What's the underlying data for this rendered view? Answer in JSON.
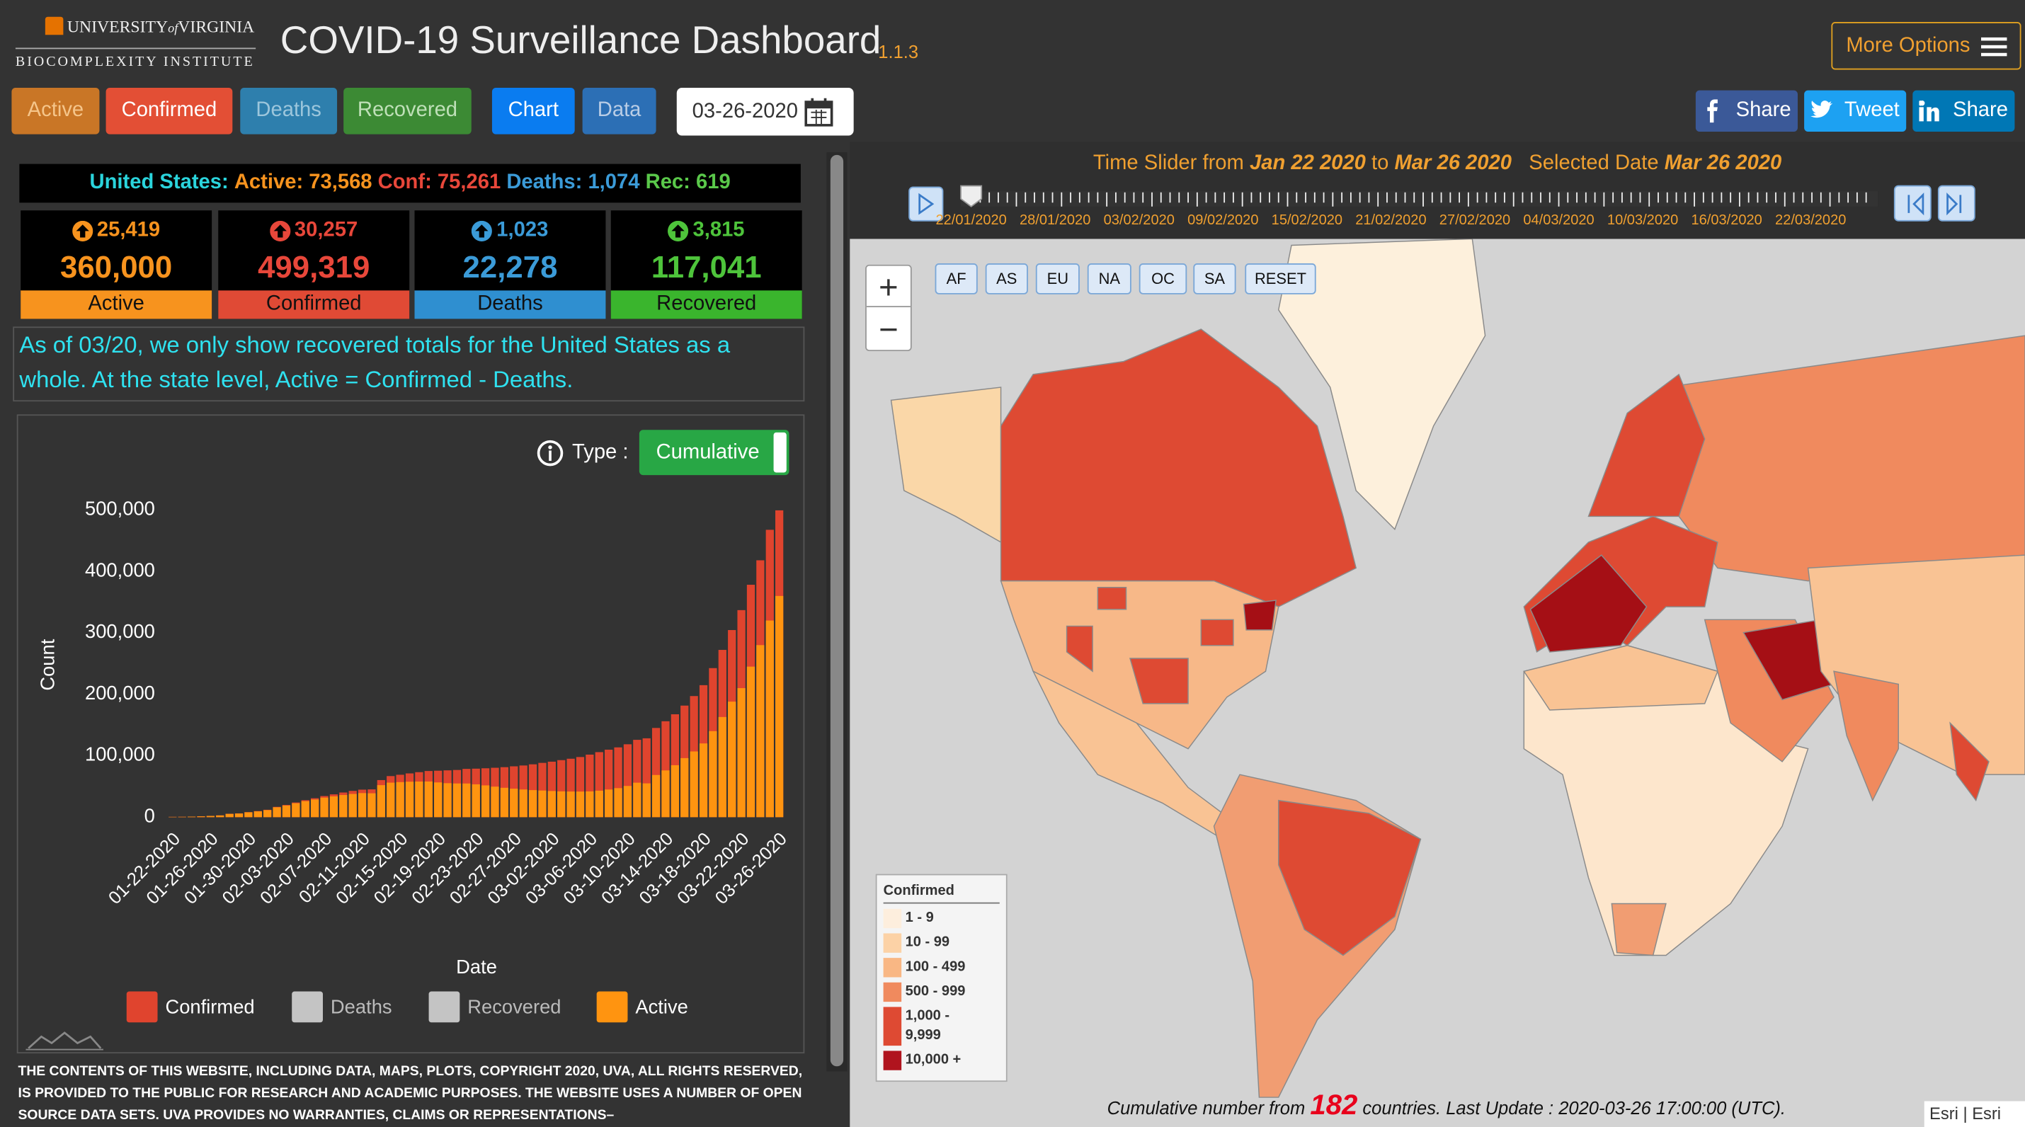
{
  "header": {
    "university": "UNIVERSITY",
    "of": "of",
    "virginia": "VIRGINIA",
    "institute": "BIOCOMPLEXITY INSTITUTE",
    "title": "COVID-19 Surveillance Dashboard",
    "version": "1.1.3",
    "more_options": "More Options"
  },
  "toolbar": {
    "metrics": [
      "Active",
      "Confirmed",
      "Deaths",
      "Recovered"
    ],
    "views": [
      "Chart",
      "Data"
    ],
    "date": "03-26-2020",
    "share": [
      "Share",
      "Tweet",
      "Share"
    ]
  },
  "summary": {
    "country": "United States:",
    "active": "Active: 73,568",
    "confirmed": "Conf: 75,261",
    "deaths": "Deaths: 1,074",
    "recovered": "Rec: 619"
  },
  "stats": [
    {
      "change": "25,419",
      "total": "360,000",
      "label": "Active"
    },
    {
      "change": "30,257",
      "total": "499,319",
      "label": "Confirmed"
    },
    {
      "change": "1,023",
      "total": "22,278",
      "label": "Deaths"
    },
    {
      "change": "3,815",
      "total": "117,041",
      "label": "Recovered"
    }
  ],
  "note": "As of 03/20, we only show recovered totals for the United States as a whole. At the state level, Active = Confirmed - Deaths.",
  "chart_controls": {
    "type_label": "Type :",
    "type_value": "Cumulative"
  },
  "chart_data": {
    "type": "bar",
    "x_label": "Date",
    "y_label": "Count",
    "categories": [
      "01-22-2020",
      null,
      null,
      null,
      "01-26-2020",
      null,
      null,
      null,
      "01-30-2020",
      null,
      null,
      null,
      "02-03-2020",
      null,
      null,
      null,
      "02-07-2020",
      null,
      null,
      null,
      "02-11-2020",
      null,
      null,
      null,
      "02-15-2020",
      null,
      null,
      null,
      "02-19-2020",
      null,
      null,
      null,
      "02-23-2020",
      null,
      null,
      null,
      "02-27-2020",
      null,
      null,
      null,
      "03-02-2020",
      null,
      null,
      null,
      "03-06-2020",
      null,
      null,
      null,
      "03-10-2020",
      null,
      null,
      null,
      "03-14-2020",
      null,
      null,
      null,
      "03-18-2020",
      null,
      null,
      null,
      "03-22-2020",
      null,
      null,
      null,
      "03-26-2020"
    ],
    "series": [
      {
        "name": "Confirmed",
        "color": "#e0442e",
        "visible": true,
        "values": [
          555,
          654,
          941,
          1434,
          2118,
          2927,
          5578,
          6166,
          8234,
          9927,
          12038,
          16787,
          19881,
          23892,
          27635,
          30817,
          34391,
          37120,
          40150,
          42762,
          44802,
          45221,
          60368,
          66885,
          69030,
          71224,
          73258,
          75136,
          75639,
          76197,
          76819,
          78572,
          78958,
          79561,
          80406,
          81388,
          82746,
          84112,
          86011,
          88369,
          90306,
          92840,
          95120,
          97886,
          101801,
          105847,
          109821,
          113590,
          118620,
          125875,
          128352,
          145205,
          156101,
          167454,
          181574,
          197102,
          214821,
          242570,
          272208,
          304507,
          336953,
          378235,
          418045,
          467653,
          499319
        ]
      },
      {
        "name": "Deaths",
        "color": "#c4c4c4",
        "visible": false
      },
      {
        "name": "Recovered",
        "color": "#c4c4c4",
        "visible": false
      },
      {
        "name": "Active",
        "color": "#ff9410",
        "visible": true,
        "values": [
          510,
          605,
          878,
          1358,
          2012,
          2806,
          5357,
          5911,
          7921,
          9470,
          11486,
          16083,
          18951,
          22683,
          26049,
          28729,
          31767,
          33862,
          36069,
          37769,
          39176,
          38866,
          52128,
          56186,
          57053,
          57719,
          57955,
          58040,
          56562,
          55298,
          54826,
          54795,
          53470,
          51735,
          49693,
          47822,
          46403,
          45055,
          44032,
          43357,
          42556,
          42009,
          41734,
          41687,
          41969,
          43129,
          45011,
          47256,
          50811,
          56121,
          55000,
          68656,
          76119,
          84566,
          96120,
          106960,
          120000,
          140000,
          163000,
          188000,
          210000,
          245000,
          280000,
          320000,
          360000
        ]
      }
    ],
    "ylim": [
      0,
      500000
    ],
    "yticks": [
      0,
      {
        "value": 100000,
        "label": "100,000"
      },
      {
        "value": 200000,
        "label": "200,000"
      },
      {
        "value": 300000,
        "label": "300,000"
      },
      {
        "value": 400000,
        "label": "400,000"
      },
      {
        "value": 500000,
        "label": "500,000"
      }
    ],
    "grid": false
  },
  "footer": "THE CONTENTS OF THIS WEBSITE, INCLUDING DATA, MAPS, PLOTS, COPYRIGHT 2020, UVA, ALL RIGHTS RESERVED, IS PROVIDED TO THE PUBLIC FOR RESEARCH AND ACADEMIC PURPOSES. THE WEBSITE USES A NUMBER OF OPEN SOURCE DATA SETS. UVA PROVIDES NO WARRANTIES, CLAIMS OR REPRESENTATIONS–",
  "map": {
    "slider": {
      "prefix": "Time Slider from",
      "start": "Jan 22 2020",
      "to": "to",
      "end": "Mar 26 2020",
      "selected_label": "Selected Date",
      "selected": "Mar 26 2020",
      "ticks": [
        "22/01/2020",
        "28/01/2020",
        "03/02/2020",
        "09/02/2020",
        "15/02/2020",
        "21/02/2020",
        "27/02/2020",
        "04/03/2020",
        "10/03/2020",
        "16/03/2020",
        "22/03/2020"
      ]
    },
    "zoom": [
      "+",
      "−"
    ],
    "regions": [
      "AF",
      "AS",
      "EU",
      "NA",
      "OC",
      "SA",
      "RESET"
    ],
    "legend": {
      "title": "Confirmed",
      "classes": [
        "1 - 9",
        "10 - 99",
        "100 - 499",
        "500 - 999",
        "1,000 - 9,999",
        "10,000 +"
      ]
    },
    "status": {
      "prefix": "Cumulative number from",
      "count": "182",
      "suffix": "countries. Last Update : 2020-03-26 17:00:00 (UTC)."
    },
    "attribution": "Esri | Esri"
  }
}
